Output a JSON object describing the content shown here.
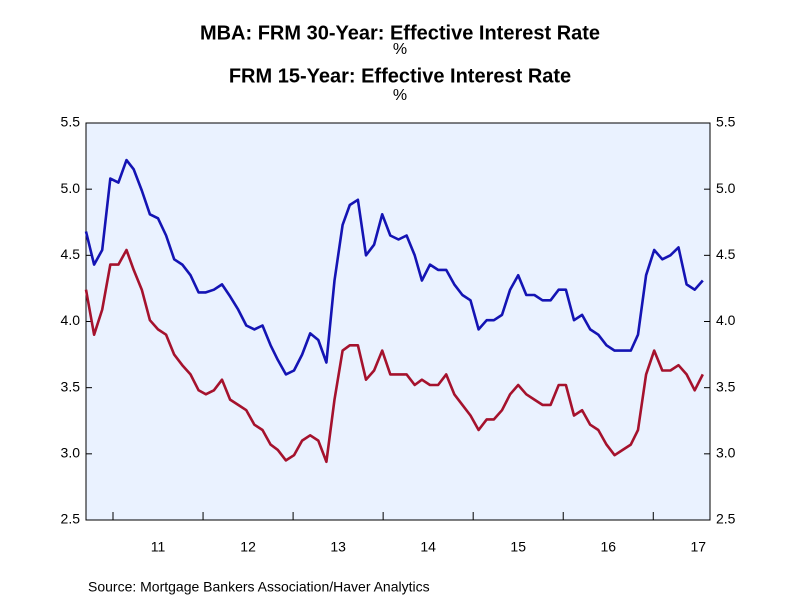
{
  "chart_data": {
    "type": "line",
    "series": [
      {
        "name": "MBA: FRM 30-Year: Effective Interest Rate",
        "unit": "%",
        "color": "#1414b4",
        "values": [
          4.68,
          4.43,
          4.54,
          5.08,
          5.05,
          5.22,
          5.15,
          4.99,
          4.81,
          4.78,
          4.65,
          4.47,
          4.43,
          4.35,
          4.22,
          4.22,
          4.24,
          4.28,
          4.19,
          4.09,
          3.97,
          3.94,
          3.97,
          3.82,
          3.71,
          3.6,
          3.63,
          3.75,
          3.91,
          3.86,
          3.69,
          4.31,
          4.73,
          4.88,
          4.92,
          4.5,
          4.58,
          4.81,
          4.65,
          4.62,
          4.65,
          4.5,
          4.31,
          4.43,
          4.39,
          4.39,
          4.28,
          4.2,
          4.16,
          3.94,
          4.01,
          4.01,
          4.05,
          4.24,
          4.35,
          4.2,
          4.2,
          4.16,
          4.16,
          4.24,
          4.24,
          4.01,
          4.05,
          3.94,
          3.9,
          3.82,
          3.78,
          3.78,
          3.78,
          3.9,
          4.35,
          4.54,
          4.47,
          4.5,
          4.56,
          4.28,
          4.24,
          4.31
        ]
      },
      {
        "name": "FRM 15-Year: Effective Interest Rate",
        "unit": "%",
        "color": "#a5122d",
        "values": [
          4.24,
          3.9,
          4.09,
          4.43,
          4.43,
          4.54,
          4.39,
          4.24,
          4.01,
          3.94,
          3.9,
          3.75,
          3.67,
          3.6,
          3.48,
          3.45,
          3.48,
          3.56,
          3.41,
          3.37,
          3.33,
          3.22,
          3.18,
          3.07,
          3.03,
          2.95,
          2.99,
          3.1,
          3.14,
          3.1,
          2.94,
          3.41,
          3.78,
          3.82,
          3.82,
          3.56,
          3.63,
          3.78,
          3.6,
          3.6,
          3.6,
          3.52,
          3.56,
          3.52,
          3.52,
          3.6,
          3.45,
          3.37,
          3.29,
          3.18,
          3.26,
          3.26,
          3.33,
          3.45,
          3.52,
          3.45,
          3.41,
          3.37,
          3.37,
          3.52,
          3.52,
          3.29,
          3.33,
          3.22,
          3.18,
          3.07,
          2.99,
          3.03,
          3.07,
          3.18,
          3.6,
          3.78,
          3.63,
          3.63,
          3.67,
          3.6,
          3.48,
          3.6
        ]
      }
    ],
    "x": [
      2010.7,
      2010.79,
      2010.88,
      2010.97,
      2011.06,
      2011.15,
      2011.23,
      2011.32,
      2011.41,
      2011.5,
      2011.59,
      2011.68,
      2011.77,
      2011.86,
      2011.95,
      2012.03,
      2012.12,
      2012.21,
      2012.3,
      2012.39,
      2012.48,
      2012.57,
      2012.66,
      2012.75,
      2012.83,
      2012.92,
      2013.01,
      2013.1,
      2013.19,
      2013.28,
      2013.37,
      2013.46,
      2013.55,
      2013.63,
      2013.72,
      2013.81,
      2013.9,
      2013.99,
      2014.08,
      2014.17,
      2014.26,
      2014.35,
      2014.43,
      2014.52,
      2014.61,
      2014.7,
      2014.79,
      2014.88,
      2014.97,
      2015.06,
      2015.15,
      2015.23,
      2015.32,
      2015.41,
      2015.5,
      2015.59,
      2015.68,
      2015.77,
      2015.86,
      2015.95,
      2016.03,
      2016.12,
      2016.21,
      2016.3,
      2016.39,
      2016.48,
      2016.57,
      2016.66,
      2016.75,
      2016.83,
      2016.92,
      2017.01,
      2017.1,
      2017.19,
      2017.28,
      2017.37,
      2017.46,
      2017.55
    ],
    "xlim": [
      2010.7,
      2017.63
    ],
    "xticks": [
      {
        "value": 2011,
        "label": "11"
      },
      {
        "value": 2012,
        "label": "12"
      },
      {
        "value": 2013,
        "label": "13"
      },
      {
        "value": 2014,
        "label": "14"
      },
      {
        "value": 2015,
        "label": "15"
      },
      {
        "value": 2016,
        "label": "16"
      },
      {
        "value": 2017,
        "label": "17"
      }
    ],
    "ylim": [
      2.5,
      5.5
    ],
    "yticks": [
      2.5,
      {
        "value": 3,
        "label": "3.0"
      },
      3.5,
      {
        "value": 4,
        "label": "4.0"
      },
      4.5,
      {
        "value": 5,
        "label": "5.0"
      },
      5.5
    ],
    "y2lim": [
      2.5,
      5.5
    ],
    "y2ticks": [
      2.5,
      {
        "value": 3,
        "label": "3.0"
      },
      3.5,
      {
        "value": 4,
        "label": "4.0"
      },
      4.5,
      {
        "value": 5,
        "label": "5.0"
      },
      5.5
    ],
    "source": "Source:  Mortgage Bankers Association/Haver Analytics"
  }
}
